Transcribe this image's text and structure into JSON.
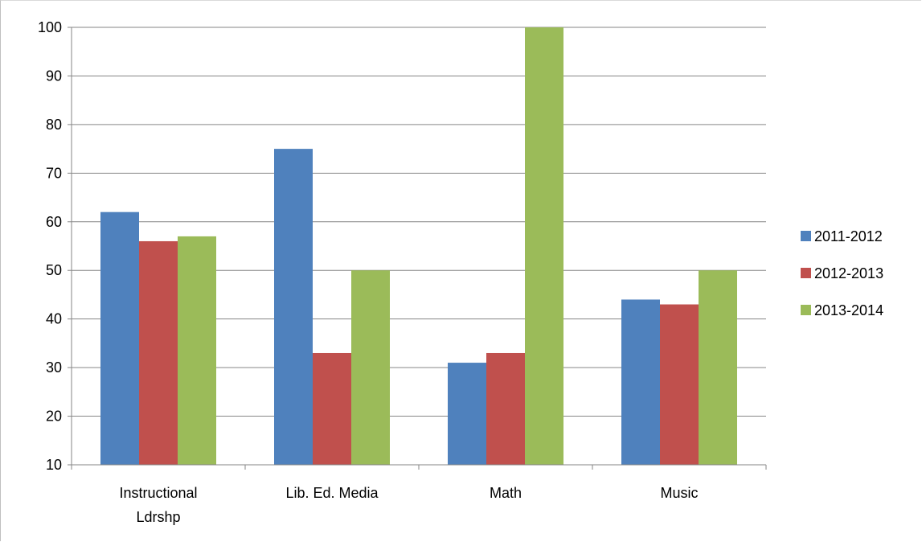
{
  "chart_data": {
    "type": "bar",
    "title": "",
    "xlabel": "",
    "ylabel": "",
    "categories": [
      [
        "Instructional",
        "Ldrshp"
      ],
      [
        "Lib. Ed. Media"
      ],
      [
        "Math"
      ],
      [
        "Music"
      ]
    ],
    "series": [
      {
        "name": "2011-2012",
        "color": "#4f81bd",
        "values": [
          62,
          75,
          31,
          44
        ]
      },
      {
        "name": "2012-2013",
        "color": "#c0504d",
        "values": [
          56,
          33,
          33,
          43
        ]
      },
      {
        "name": "2013-2014",
        "color": "#9bbb59",
        "values": [
          57,
          50,
          100,
          50
        ]
      }
    ],
    "ylim": [
      10,
      100
    ],
    "yticks": [
      10,
      20,
      30,
      40,
      50,
      60,
      70,
      80,
      90,
      100
    ],
    "grid": true,
    "legend_position": "right"
  }
}
